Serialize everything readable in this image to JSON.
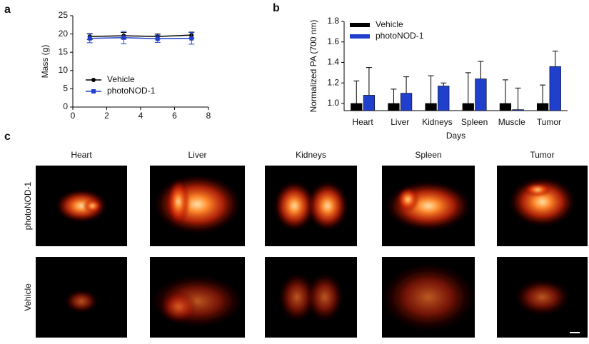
{
  "panel_labels": [
    "a",
    "b",
    "c"
  ],
  "chart_data": [
    {
      "type": "line",
      "ylabel": "Mass (g)",
      "x": [
        1,
        3,
        5,
        7
      ],
      "xlim": [
        0,
        8
      ],
      "xticks": [
        0,
        2,
        4,
        6,
        8
      ],
      "ylim": [
        0,
        25
      ],
      "yticks": [
        0,
        5,
        10,
        15,
        20,
        25
      ],
      "series": [
        {
          "name": "Vehicle",
          "color": "#000000",
          "marker": "circle",
          "values": [
            19.3,
            19.5,
            19.3,
            19.7
          ],
          "errors": [
            0.8,
            0.9,
            0.7,
            0.8
          ]
        },
        {
          "name": "photoNOD-1",
          "color": "#1f3fcc",
          "marker": "square",
          "values": [
            18.8,
            19.0,
            18.7,
            18.8
          ],
          "errors": [
            1.2,
            1.7,
            1.0,
            1.6
          ]
        }
      ]
    },
    {
      "type": "bar",
      "ylabel": "Normalized PA (700 nm)",
      "xlabel": "Days",
      "categories": [
        "Heart",
        "Liver",
        "Kidneys",
        "Spleen",
        "Muscle",
        "Tumor"
      ],
      "ylim": [
        0.93,
        1.8
      ],
      "yticks": [
        {
          "value": 1,
          "label": "1.0"
        },
        1.2,
        1.4,
        1.6,
        1.8
      ],
      "series": [
        {
          "name": "Vehicle",
          "color": "#000000",
          "values": [
            1,
            1,
            1,
            1,
            1,
            1
          ],
          "errors": [
            0.22,
            0.14,
            0.27,
            0.3,
            0.23,
            0.18
          ]
        },
        {
          "name": "photoNOD-1",
          "color": "#1f3fcc",
          "values": [
            1.08,
            1.1,
            1.17,
            1.24,
            0.94,
            1.36
          ],
          "errors": [
            0.27,
            0.16,
            0.03,
            0.17,
            0.21,
            0.15
          ]
        }
      ]
    }
  ],
  "image_grid": {
    "columns": [
      "Heart",
      "Liver",
      "Kidneys",
      "Spleen",
      "Tumor"
    ],
    "rows": [
      "photoNOD-1",
      "Vehicle"
    ]
  }
}
